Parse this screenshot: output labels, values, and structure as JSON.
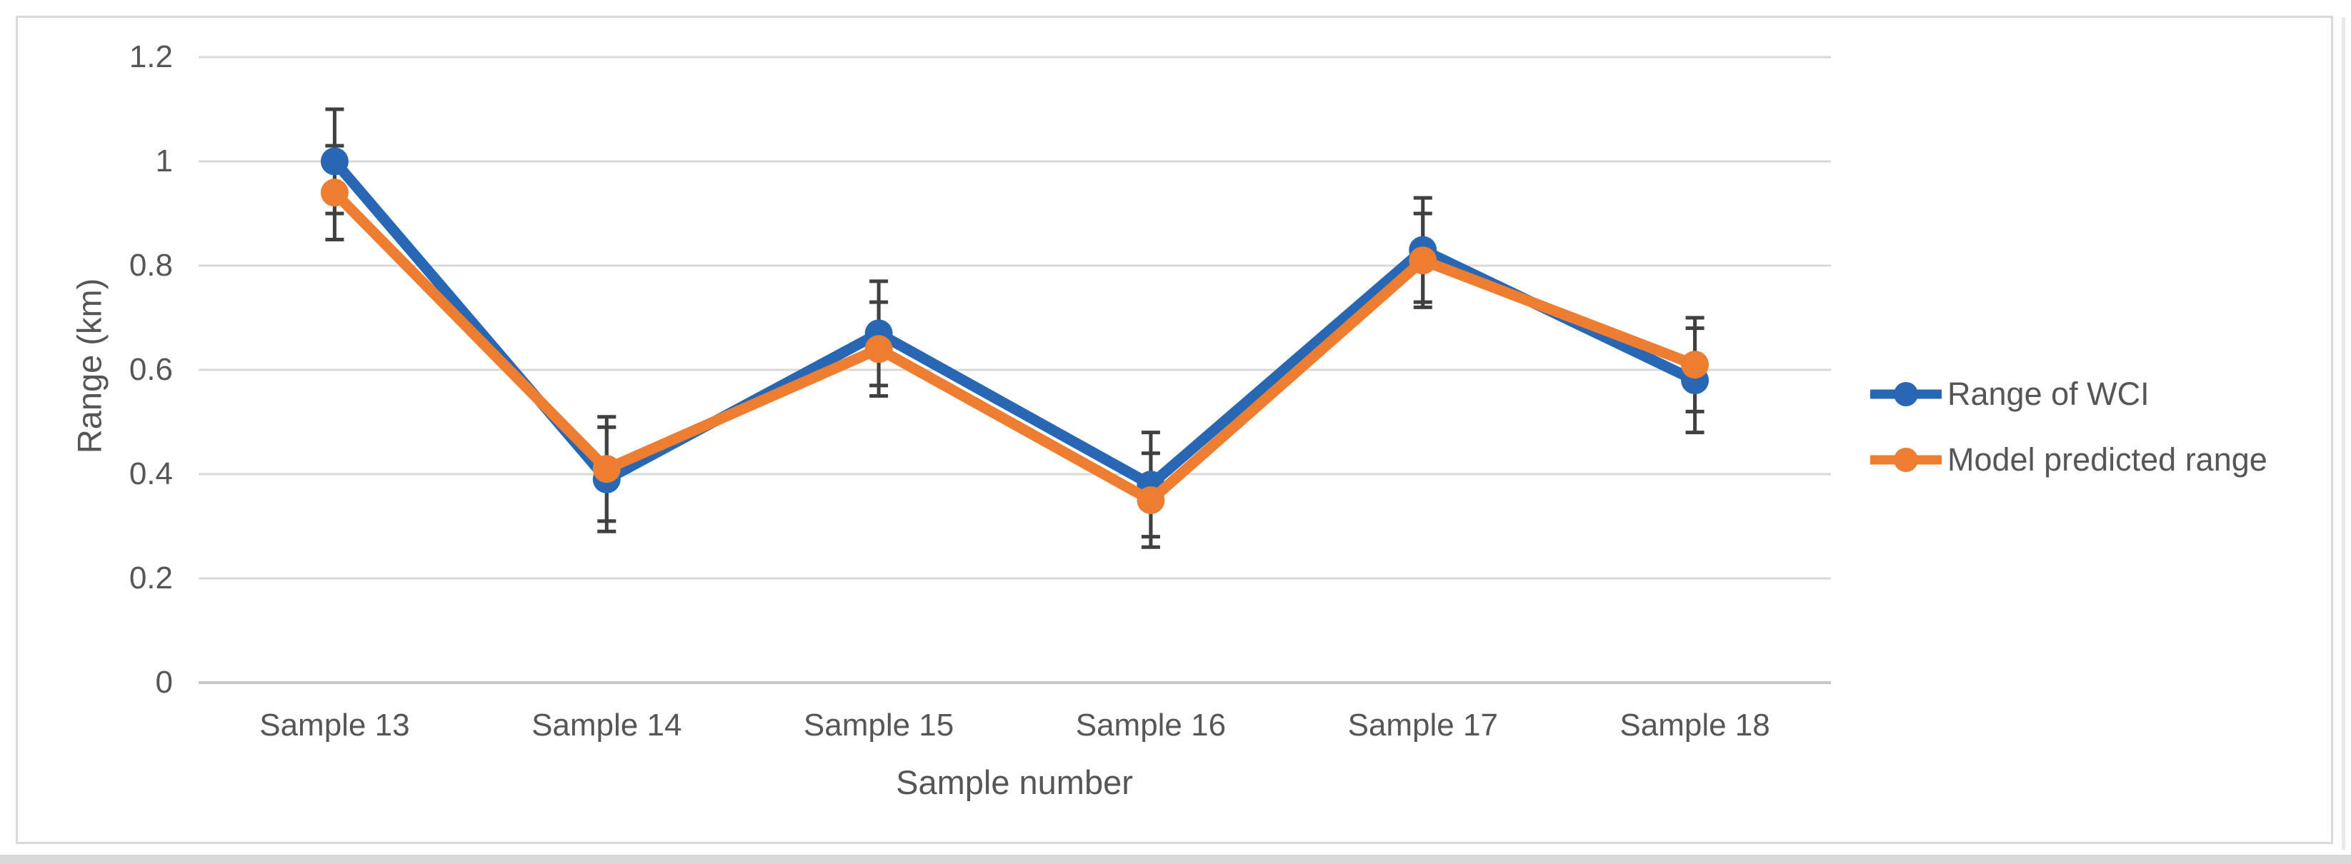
{
  "figure": {
    "background": "#FFFFFF",
    "border_color": "#D9D9D9"
  },
  "chart_data": {
    "type": "line",
    "title": "",
    "xlabel": "Sample number",
    "ylabel": "Range (km)",
    "categories": [
      "Sample 13",
      "Sample 14",
      "Sample 15",
      "Sample 16",
      "Sample 17",
      "Sample 18"
    ],
    "y_ticks": [
      "0",
      "0.2",
      "0.4",
      "0.6",
      "0.8",
      "1",
      "1.2"
    ],
    "ylim": [
      0,
      1.2
    ],
    "y_step": 0.2,
    "grid": "horizontal",
    "legend_position": "right",
    "gridline_color": "#D9D9D9",
    "axis_line_color": "#C6C6C6",
    "error_bar_color": "#404040",
    "text_color": "#565656",
    "series": [
      {
        "name": "Range of WCI",
        "color": "#2767B4",
        "marker": "circle",
        "values": [
          1.0,
          0.39,
          0.67,
          0.38,
          0.83,
          0.58
        ],
        "error": [
          0.1,
          0.1,
          0.1,
          0.1,
          0.1,
          0.1
        ]
      },
      {
        "name": "Model predicted range",
        "color": "#ED7D31",
        "marker": "circle",
        "values": [
          0.94,
          0.41,
          0.64,
          0.35,
          0.81,
          0.61
        ],
        "error": [
          0.09,
          0.1,
          0.09,
          0.09,
          0.09,
          0.09
        ]
      }
    ]
  }
}
